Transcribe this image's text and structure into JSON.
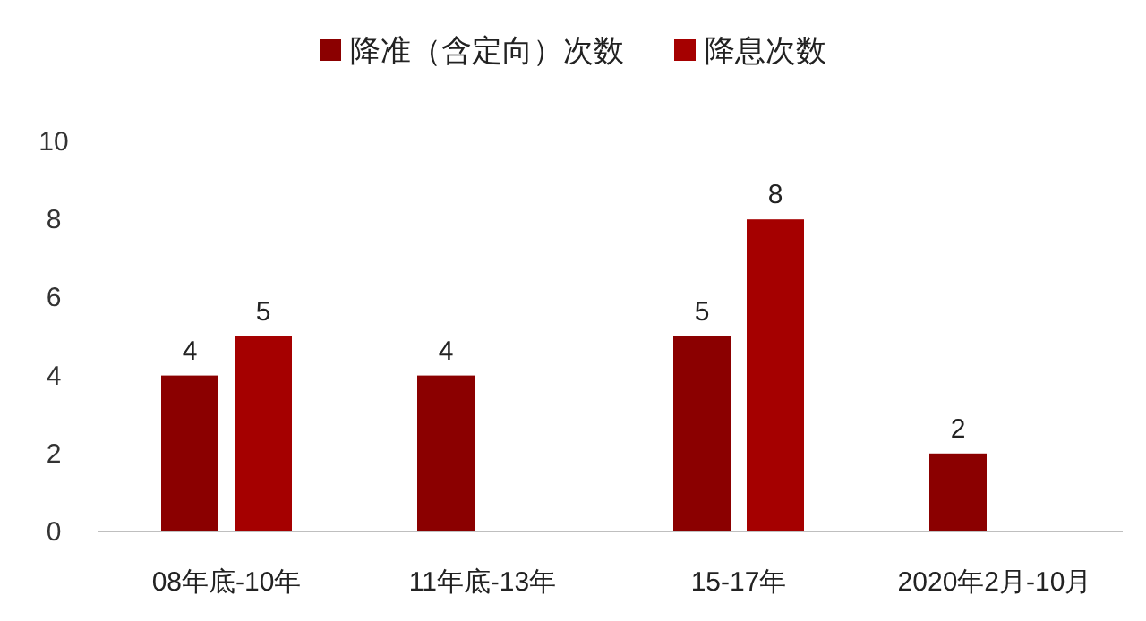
{
  "chart_data": {
    "type": "bar",
    "categories": [
      "08年底-10年",
      "11年底-13年",
      "15-17年",
      "2020年2月-10月"
    ],
    "series": [
      {
        "name": "降准（含定向）次数",
        "color": "#8b0000",
        "values": [
          4,
          4,
          5,
          2
        ]
      },
      {
        "name": "降息次数",
        "color": "#a50000",
        "values": [
          5,
          null,
          8,
          null
        ]
      }
    ],
    "ylim": [
      0,
      10
    ],
    "yticks": [
      0,
      2,
      4,
      6,
      8,
      10
    ],
    "data_labels": true,
    "legend": "top",
    "grid": false
  }
}
